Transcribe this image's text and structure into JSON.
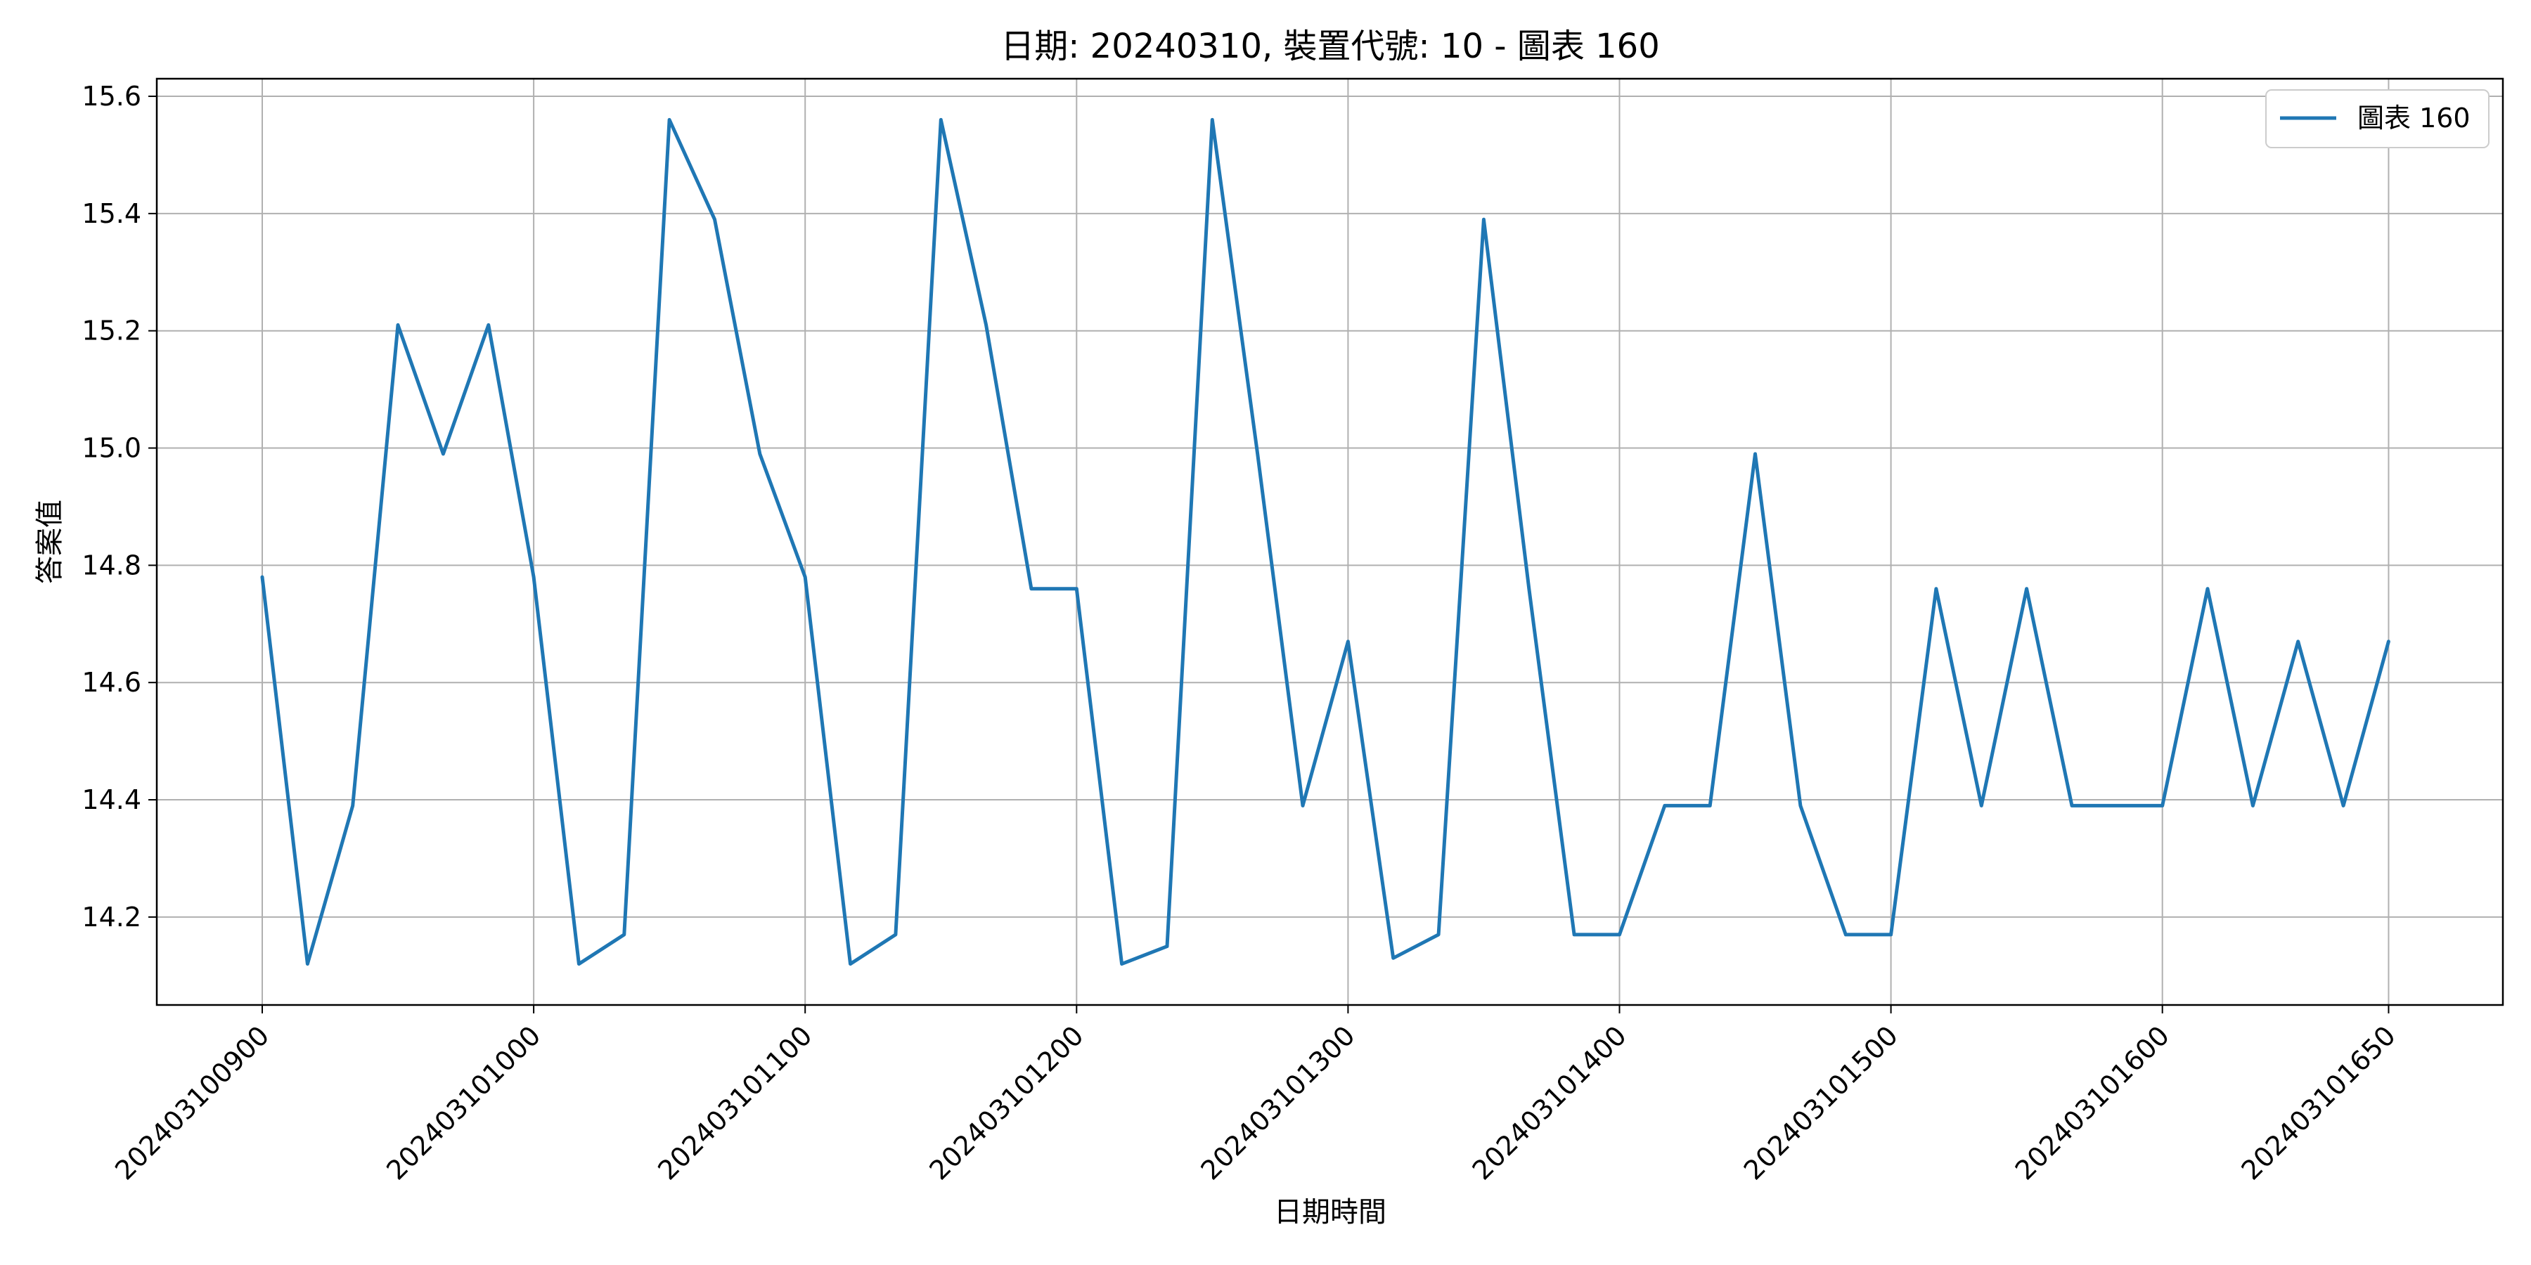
{
  "chart_data": {
    "type": "line",
    "title": "日期: 20240310, 裝置代號: 10 - 圖表 160",
    "xlabel": "日期時間",
    "ylabel": "答案值",
    "ylim": [
      14.05,
      15.63
    ],
    "yticks": [
      14.2,
      14.4,
      14.6,
      14.8,
      15.0,
      15.2,
      15.4,
      15.6
    ],
    "ytick_labels": [
      "14.2",
      "14.4",
      "14.6",
      "14.8",
      "15.0",
      "15.2",
      "15.4",
      "15.6"
    ],
    "xticks": [
      {
        "index": 0,
        "label": "202403100900"
      },
      {
        "index": 6,
        "label": "202403101000"
      },
      {
        "index": 12,
        "label": "202403101100"
      },
      {
        "index": 18,
        "label": "202403101200"
      },
      {
        "index": 24,
        "label": "202403101300"
      },
      {
        "index": 30,
        "label": "202403101400"
      },
      {
        "index": 36,
        "label": "202403101500"
      },
      {
        "index": 42,
        "label": "202403101600"
      },
      {
        "index": 47,
        "label": "202403101650"
      }
    ],
    "grid": true,
    "legend_position": "top-right",
    "series": [
      {
        "name": "圖表 160",
        "color": "#1f77b4",
        "values": [
          14.78,
          14.12,
          14.39,
          15.21,
          14.99,
          15.21,
          14.78,
          14.12,
          14.17,
          15.56,
          15.39,
          14.99,
          14.78,
          14.12,
          14.17,
          15.56,
          15.21,
          14.76,
          14.76,
          14.12,
          14.15,
          15.56,
          14.99,
          14.39,
          14.67,
          14.13,
          14.17,
          15.39,
          14.76,
          14.17,
          14.17,
          14.39,
          14.39,
          14.99,
          14.39,
          14.17,
          14.17,
          14.76,
          14.39,
          14.76,
          14.39,
          14.39,
          14.39,
          14.76,
          14.39,
          14.67,
          14.39,
          14.67
        ]
      }
    ]
  }
}
